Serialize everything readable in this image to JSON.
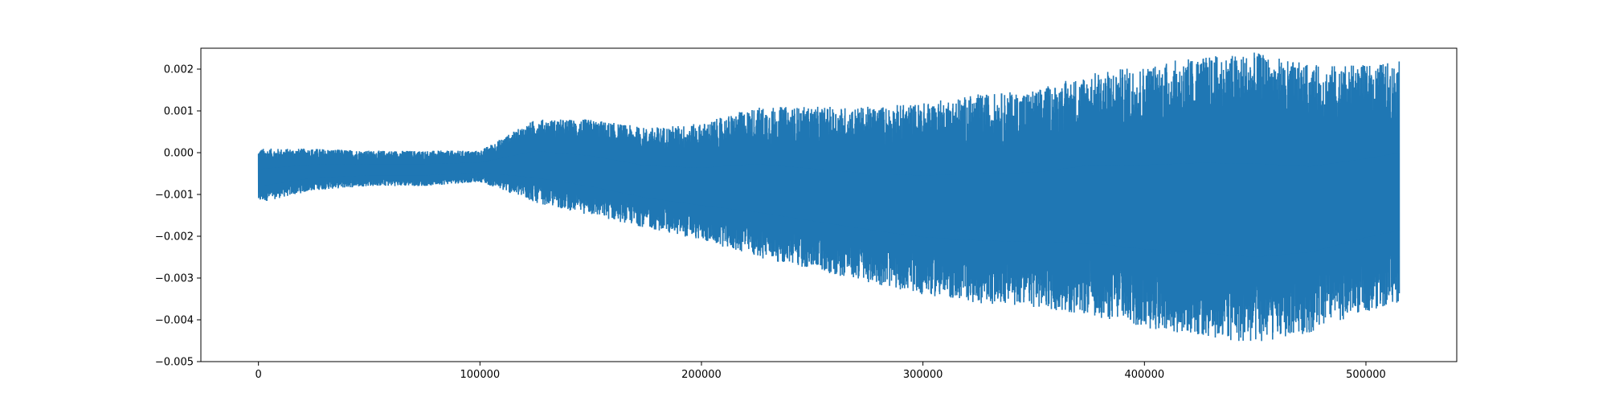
{
  "chart_data": {
    "type": "line",
    "title": "",
    "xlabel": "",
    "ylabel": "",
    "xlim": [
      -26000,
      541000
    ],
    "ylim": [
      -0.005,
      0.0025
    ],
    "xticks": [
      0,
      100000,
      200000,
      300000,
      400000,
      500000
    ],
    "xtick_labels": [
      "0",
      "100000",
      "200000",
      "300000",
      "400000",
      "500000"
    ],
    "yticks": [
      -0.005,
      -0.004,
      -0.003,
      -0.002,
      -0.001,
      0.0,
      0.001,
      0.002
    ],
    "ytick_labels": [
      "−0.005",
      "−0.004",
      "−0.003",
      "−0.002",
      "−0.001",
      "0.000",
      "0.001",
      "0.002"
    ],
    "grid": false,
    "series": [
      {
        "color": "#1f77b4",
        "x_range": [
          0,
          515000
        ],
        "x": [
          0,
          25000,
          50000,
          75000,
          100000,
          125000,
          150000,
          175000,
          200000,
          225000,
          250000,
          275000,
          300000,
          325000,
          350000,
          375000,
          400000,
          425000,
          450000,
          475000,
          500000,
          515000
        ],
        "upper": [
          0.0001,
          0.0001,
          5e-05,
          5e-05,
          5e-05,
          0.0008,
          0.0008,
          0.0006,
          0.0007,
          0.0011,
          0.0011,
          0.0011,
          0.0012,
          0.0014,
          0.0015,
          0.0019,
          0.0021,
          0.0023,
          0.0024,
          0.0021,
          0.0021,
          0.0022
        ],
        "lower": [
          -0.0012,
          -0.0009,
          -0.0008,
          -0.0008,
          -0.0007,
          -0.0012,
          -0.0015,
          -0.0018,
          -0.0021,
          -0.0025,
          -0.0028,
          -0.0031,
          -0.0034,
          -0.0036,
          -0.0037,
          -0.0039,
          -0.0042,
          -0.0044,
          -0.0046,
          -0.0043,
          -0.0038,
          -0.0036
        ]
      }
    ]
  }
}
